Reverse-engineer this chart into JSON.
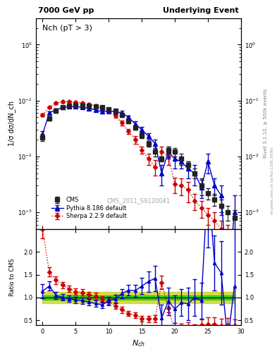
{
  "title_left": "7000 GeV pp",
  "title_right": "Underlying Event",
  "plot_title": "Nch (pT > 3)",
  "ylabel_main": "1/σ dσ/dN_ch",
  "ylabel_ratio": "Ratio to CMS",
  "xlabel": "N_{ch}",
  "right_label": "Rivet 3.1.10, ≥ 500k events",
  "watermark": "CMS_2011_S9120041",
  "arxiv": "mcplots.cern.ch [arXiv:1306.3436]",
  "cms_x": [
    0,
    1,
    2,
    3,
    4,
    5,
    6,
    7,
    8,
    9,
    10,
    11,
    12,
    13,
    14,
    15,
    16,
    17,
    18,
    19,
    20,
    21,
    22,
    23,
    24,
    25,
    26,
    27,
    28,
    29
  ],
  "cms_y": [
    0.022,
    0.048,
    0.065,
    0.075,
    0.08,
    0.082,
    0.081,
    0.08,
    0.078,
    0.075,
    0.07,
    0.065,
    0.055,
    0.043,
    0.033,
    0.024,
    0.017,
    0.012,
    0.009,
    0.013,
    0.012,
    0.009,
    0.007,
    0.005,
    0.003,
    0.0022,
    0.0017,
    0.0013,
    0.001,
    0.0008
  ],
  "cms_yerr": [
    0.003,
    0.004,
    0.004,
    0.004,
    0.004,
    0.004,
    0.004,
    0.004,
    0.004,
    0.004,
    0.004,
    0.004,
    0.004,
    0.003,
    0.003,
    0.003,
    0.002,
    0.002,
    0.001,
    0.002,
    0.002,
    0.002,
    0.001,
    0.001,
    0.001,
    0.0005,
    0.0004,
    0.0004,
    0.0003,
    0.0003
  ],
  "pythia_x": [
    0,
    1,
    2,
    3,
    4,
    5,
    6,
    7,
    8,
    9,
    10,
    11,
    12,
    13,
    14,
    15,
    16,
    17,
    18,
    19,
    20,
    21,
    22,
    23,
    24,
    25,
    26,
    27,
    28,
    29
  ],
  "pythia_y": [
    0.025,
    0.06,
    0.068,
    0.075,
    0.078,
    0.078,
    0.075,
    0.072,
    0.068,
    0.063,
    0.065,
    0.063,
    0.06,
    0.05,
    0.038,
    0.03,
    0.023,
    0.017,
    0.005,
    0.012,
    0.009,
    0.008,
    0.006,
    0.005,
    0.0028,
    0.008,
    0.003,
    0.002,
    5e-05,
    0.001
  ],
  "pythia_yerr": [
    0.003,
    0.004,
    0.004,
    0.004,
    0.004,
    0.004,
    0.004,
    0.004,
    0.004,
    0.004,
    0.004,
    0.005,
    0.005,
    0.004,
    0.004,
    0.004,
    0.003,
    0.003,
    0.002,
    0.003,
    0.003,
    0.002,
    0.002,
    0.002,
    0.001,
    0.003,
    0.001,
    0.001,
    3e-05,
    0.001
  ],
  "sherpa_x": [
    0,
    1,
    2,
    3,
    4,
    5,
    6,
    7,
    8,
    9,
    10,
    11,
    12,
    13,
    14,
    15,
    16,
    17,
    18,
    19,
    20,
    21,
    22,
    23,
    24,
    25,
    26,
    27,
    28,
    29
  ],
  "sherpa_y": [
    0.055,
    0.075,
    0.09,
    0.095,
    0.095,
    0.093,
    0.09,
    0.085,
    0.08,
    0.072,
    0.063,
    0.053,
    0.04,
    0.028,
    0.02,
    0.013,
    0.009,
    0.0065,
    0.012,
    0.01,
    0.0032,
    0.003,
    0.0025,
    0.0016,
    0.0012,
    0.0009,
    0.0007,
    0.0005,
    0.0004,
    0.0003
  ],
  "sherpa_yerr": [
    0.003,
    0.004,
    0.004,
    0.004,
    0.004,
    0.004,
    0.004,
    0.004,
    0.004,
    0.004,
    0.004,
    0.004,
    0.004,
    0.003,
    0.003,
    0.002,
    0.002,
    0.002,
    0.003,
    0.003,
    0.001,
    0.001,
    0.001,
    0.0005,
    0.0004,
    0.0003,
    0.0003,
    0.0002,
    0.0002,
    0.0001
  ],
  "ratio_pythia": [
    1.14,
    1.25,
    1.05,
    1.0,
    0.975,
    0.95,
    0.93,
    0.9,
    0.87,
    0.84,
    0.93,
    0.97,
    1.09,
    1.16,
    1.15,
    1.25,
    1.35,
    1.42,
    0.55,
    0.92,
    0.75,
    0.89,
    0.86,
    1.0,
    0.93,
    3.6,
    1.76,
    1.54,
    0.05,
    1.25
  ],
  "ratio_pythia_err": [
    0.15,
    0.1,
    0.08,
    0.07,
    0.07,
    0.07,
    0.07,
    0.07,
    0.07,
    0.07,
    0.08,
    0.09,
    0.1,
    0.11,
    0.13,
    0.18,
    0.22,
    0.28,
    0.3,
    0.3,
    0.3,
    0.3,
    0.35,
    0.4,
    0.4,
    1.5,
    0.6,
    0.7,
    0.04,
    1.5
  ],
  "ratio_sherpa": [
    2.5,
    1.56,
    1.38,
    1.27,
    1.19,
    1.13,
    1.11,
    1.06,
    1.03,
    0.96,
    0.9,
    0.82,
    0.73,
    0.65,
    0.61,
    0.54,
    0.53,
    0.54,
    1.33,
    0.77,
    0.27,
    0.33,
    0.36,
    0.32,
    0.4,
    0.41,
    0.41,
    0.38,
    0.4,
    0.375
  ],
  "ratio_sherpa_err": [
    0.2,
    0.1,
    0.08,
    0.07,
    0.07,
    0.07,
    0.07,
    0.07,
    0.07,
    0.07,
    0.07,
    0.07,
    0.07,
    0.06,
    0.06,
    0.06,
    0.07,
    0.08,
    0.15,
    0.1,
    0.08,
    0.1,
    0.1,
    0.1,
    0.12,
    0.15,
    0.15,
    0.15,
    0.15,
    0.15
  ],
  "green_band_y1": [
    0.95,
    0.95,
    0.95,
    0.95,
    0.95,
    0.95,
    0.95,
    0.95,
    0.95,
    0.95,
    0.95,
    0.95,
    0.95,
    0.95,
    0.95,
    0.95,
    0.95,
    0.95,
    0.95,
    0.95,
    0.95,
    0.95,
    0.95,
    0.95,
    0.95,
    0.95,
    0.95,
    0.95,
    0.95,
    0.95
  ],
  "green_band_y2": [
    1.05,
    1.05,
    1.05,
    1.05,
    1.05,
    1.05,
    1.05,
    1.05,
    1.05,
    1.05,
    1.05,
    1.05,
    1.05,
    1.05,
    1.05,
    1.05,
    1.05,
    1.05,
    1.05,
    1.05,
    1.05,
    1.05,
    1.05,
    1.05,
    1.05,
    1.05,
    1.05,
    1.05,
    1.05,
    1.05
  ],
  "yellow_band_y1": [
    0.88,
    0.88,
    0.88,
    0.88,
    0.88,
    0.88,
    0.88,
    0.88,
    0.88,
    0.88,
    0.88,
    0.88,
    0.88,
    0.88,
    0.88,
    0.88,
    0.88,
    0.88,
    0.88,
    0.88,
    0.88,
    0.88,
    0.88,
    0.88,
    0.88,
    0.88,
    0.88,
    0.88,
    0.88,
    0.88
  ],
  "yellow_band_y2": [
    1.12,
    1.12,
    1.12,
    1.12,
    1.12,
    1.12,
    1.12,
    1.12,
    1.12,
    1.12,
    1.12,
    1.12,
    1.12,
    1.12,
    1.12,
    1.12,
    1.12,
    1.12,
    1.12,
    1.12,
    1.12,
    1.12,
    1.12,
    1.12,
    1.12,
    1.12,
    1.12,
    1.12,
    1.12,
    1.12
  ],
  "cms_color": "#222222",
  "pythia_color": "#0000cc",
  "sherpa_color": "#cc0000",
  "green_color": "#00cc00",
  "yellow_color": "#cccc00",
  "bg_color": "#ffffff",
  "xlim": [
    -1,
    30
  ],
  "ylim_main": [
    0.0005,
    3.0
  ],
  "ylim_ratio": [
    0.4,
    2.5
  ]
}
